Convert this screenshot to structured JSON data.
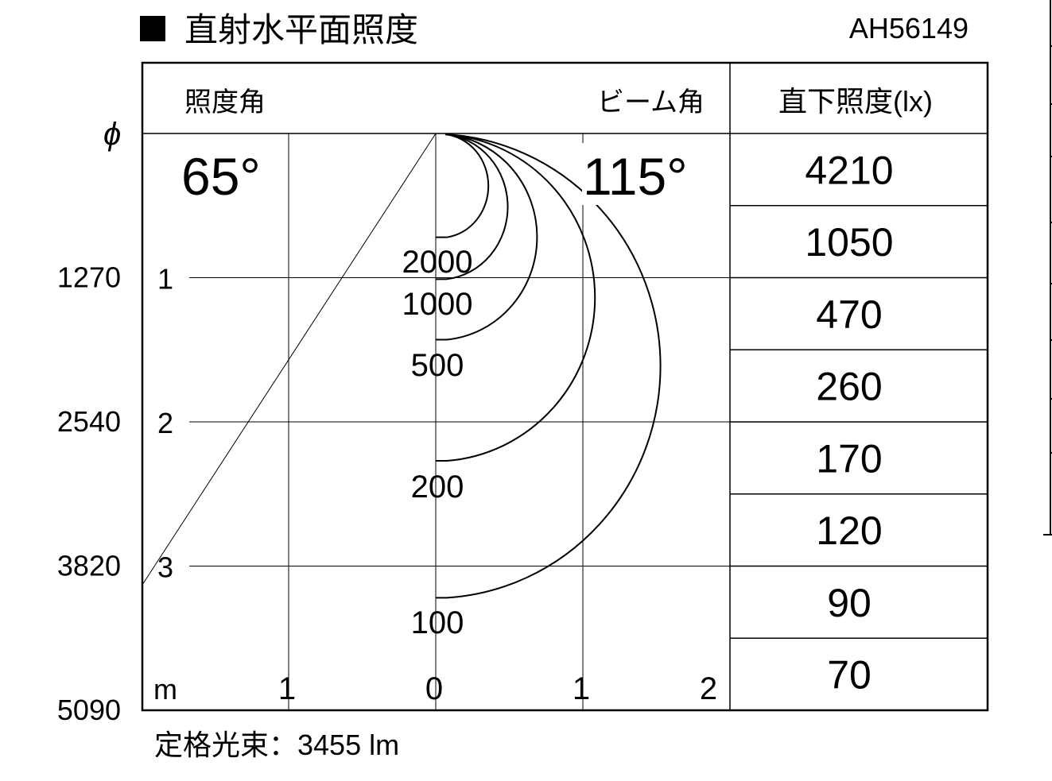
{
  "title": "直射水平面照度",
  "model": "AH56149",
  "header": {
    "left_label": "照度角",
    "right_label": "ビーム角",
    "table_label": "直下照度(lx)",
    "phi_symbol": "ϕ"
  },
  "angles": {
    "illuminance_angle": "65°",
    "beam_angle": "115°"
  },
  "footer": "定格光束：3455 lm",
  "chart_data": {
    "type": "line",
    "description_type": "isolux contour diagram",
    "xlabel": "m",
    "x_ticks": [
      "1",
      "0",
      "1",
      "2"
    ],
    "y_ticks": [
      "1",
      "2",
      "3"
    ],
    "diameter_ticks": [
      "1270",
      "2540",
      "3820",
      "5090"
    ],
    "xlim": [
      -1,
      2
    ],
    "ylim": [
      0,
      4
    ],
    "grid": true,
    "illuminance_angle_deg": 65,
    "beam_angle_deg": 115,
    "contours": [
      {
        "label": "2000",
        "lux": 2000,
        "max_radius_m": 0.36,
        "depth_m": 0.72
      },
      {
        "label": "1000",
        "lux": 1000,
        "max_radius_m": 0.5,
        "depth_m": 1.01
      },
      {
        "label": "500",
        "lux": 500,
        "max_radius_m": 0.71,
        "depth_m": 1.43
      },
      {
        "label": "200",
        "lux": 200,
        "max_radius_m": 1.12,
        "depth_m": 2.27
      },
      {
        "label": "100",
        "lux": 100,
        "max_radius_m": 1.58,
        "depth_m": 3.22
      }
    ],
    "direct_illuminance": {
      "heading": "直下照度(lx)",
      "values": [
        "4210",
        "1050",
        "470",
        "260",
        "170",
        "120",
        "90",
        "70"
      ]
    }
  }
}
